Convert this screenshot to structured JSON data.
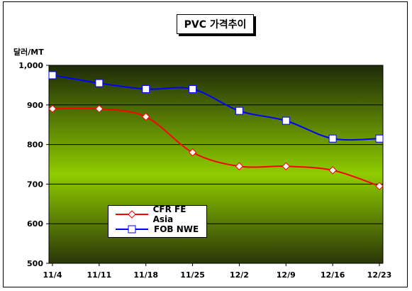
{
  "title": "PVC 가격추이",
  "unit_label": "달러/MT",
  "colors": {
    "plot_top": "#1e2a08",
    "plot_mid": "#8fcc00",
    "plot_bottom": "#2a3608",
    "series_cfr": "#ff0000",
    "series_fob": "#0000ff"
  },
  "chart_data": {
    "type": "line",
    "title": "PVC 가격추이",
    "ylabel": "달러/MT",
    "xlabel": "",
    "categories": [
      "11/4",
      "11/11",
      "11/18",
      "11/25",
      "12/2",
      "12/9",
      "12/16",
      "12/23"
    ],
    "yticks": [
      "500",
      "600",
      "700",
      "800",
      "900",
      "1,000"
    ],
    "ylim": [
      500,
      1000
    ],
    "grid": true,
    "legend_position": "bottom-left",
    "series": [
      {
        "name": "CFR FE Asia",
        "marker": "diamond",
        "color": "#ff0000",
        "values": [
          890,
          890,
          870,
          780,
          745,
          745,
          735,
          695
        ]
      },
      {
        "name": "FOB NWE",
        "marker": "square",
        "color": "#0000ff",
        "values": [
          975,
          955,
          940,
          940,
          885,
          860,
          815,
          815
        ]
      }
    ]
  }
}
